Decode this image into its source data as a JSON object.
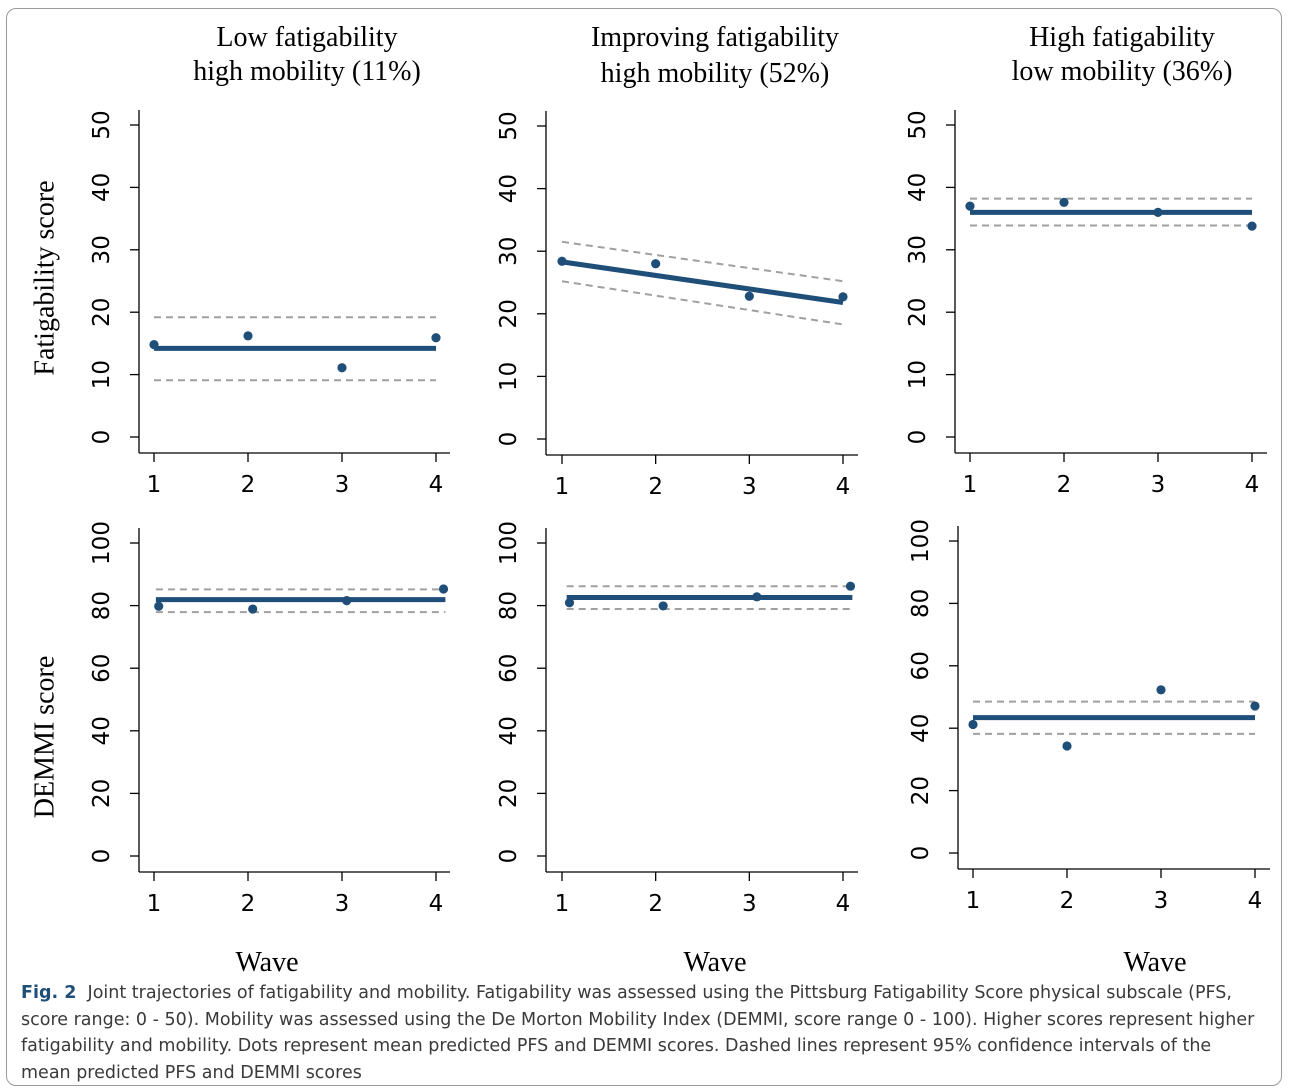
{
  "caption": {
    "label": "Fig. 2",
    "text": "Joint trajectories of fatigability and mobility. Fatigability was assessed using the Pittsburg Fatigability Score physical subscale (PFS, score range: 0 - 50). Mobility was assessed using the De Morton Mobility Index (DEMMI, score range 0 - 100). Higher scores represent higher fatigability and mobility. Dots represent mean predicted PFS and DEMMI scores. Dashed lines represent 95% confidence intervals of the mean predicted PFS and DEMMI scores"
  },
  "colors": {
    "line": "#1f4e79",
    "ci": "#a0a0a0",
    "axis": "#000000"
  },
  "chart_data": [
    {
      "type": "line",
      "column_title_line1": "Low fatigability",
      "column_title_line2": "high mobility (11%)",
      "ylabel": "Fatigability score",
      "xlabel": "",
      "x": [
        1,
        2,
        3,
        4
      ],
      "ylim": [
        0,
        50
      ],
      "yticks": [
        0,
        10,
        20,
        30,
        40,
        50
      ],
      "points": [
        14.8,
        16.2,
        11.1,
        15.9
      ],
      "fit": [
        [
          1,
          14.2
        ],
        [
          4,
          14.2
        ]
      ],
      "ci_upper": [
        [
          1,
          19.2
        ],
        [
          4,
          19.2
        ]
      ],
      "ci_lower": [
        [
          1,
          9.1
        ],
        [
          4,
          9.1
        ]
      ]
    },
    {
      "type": "line",
      "column_title_line1": "Improving fatigability",
      "column_title_line2": "high mobility (52%)",
      "ylabel": "",
      "xlabel": "",
      "x": [
        1,
        2,
        3,
        4
      ],
      "ylim": [
        0,
        50
      ],
      "yticks": [
        0,
        10,
        20,
        30,
        40,
        50
      ],
      "points": [
        28.4,
        28.0,
        22.8,
        22.7
      ],
      "fit": [
        [
          1,
          28.3
        ],
        [
          4,
          21.8
        ]
      ],
      "ci_upper": [
        [
          1,
          31.5
        ],
        [
          4,
          25.2
        ]
      ],
      "ci_lower": [
        [
          1,
          25.2
        ],
        [
          4,
          18.3
        ]
      ]
    },
    {
      "type": "line",
      "column_title_line1": "High fatigability",
      "column_title_line2": "low mobility (36%)",
      "ylabel": "",
      "xlabel": "",
      "x": [
        1,
        2,
        3,
        4
      ],
      "ylim": [
        0,
        50
      ],
      "yticks": [
        0,
        10,
        20,
        30,
        40,
        50
      ],
      "points": [
        37.0,
        37.6,
        36.0,
        33.8
      ],
      "fit": [
        [
          1,
          36.0
        ],
        [
          4,
          36.0
        ]
      ],
      "ci_upper": [
        [
          1,
          38.2
        ],
        [
          4,
          38.2
        ]
      ],
      "ci_lower": [
        [
          1,
          33.9
        ],
        [
          4,
          33.9
        ]
      ]
    },
    {
      "type": "line",
      "column_title_line1": "",
      "column_title_line2": "",
      "ylabel": "DEMMI score",
      "xlabel": "Wave",
      "x": [
        1,
        2,
        3,
        4
      ],
      "ylim": [
        0,
        100
      ],
      "yticks": [
        0,
        20,
        40,
        60,
        80,
        100
      ],
      "points_x": [
        1.05,
        2.05,
        3.05,
        4.08
      ],
      "points": [
        79.8,
        78.9,
        81.6,
        85.3
      ],
      "fit": [
        [
          1.02,
          81.9
        ],
        [
          4.1,
          81.9
        ]
      ],
      "ci_upper": [
        [
          1.02,
          85.2
        ],
        [
          4.1,
          85.2
        ]
      ],
      "ci_lower": [
        [
          1.02,
          77.9
        ],
        [
          4.1,
          77.9
        ]
      ]
    },
    {
      "type": "line",
      "column_title_line1": "",
      "column_title_line2": "",
      "ylabel": "",
      "xlabel": "Wave",
      "x": [
        1,
        2,
        3,
        4
      ],
      "ylim": [
        0,
        100
      ],
      "yticks": [
        0,
        20,
        40,
        60,
        80,
        100
      ],
      "points_x": [
        1.08,
        2.08,
        3.08,
        4.08
      ],
      "points": [
        80.9,
        79.9,
        82.8,
        86.2
      ],
      "fit": [
        [
          1.05,
          82.6
        ],
        [
          4.1,
          82.6
        ]
      ],
      "ci_upper": [
        [
          1.05,
          86.2
        ],
        [
          4.1,
          86.2
        ]
      ],
      "ci_lower": [
        [
          1.05,
          78.9
        ],
        [
          4.1,
          78.9
        ]
      ]
    },
    {
      "type": "line",
      "column_title_line1": "",
      "column_title_line2": "",
      "ylabel": "",
      "xlabel": "Wave",
      "x": [
        1,
        2,
        3,
        4
      ],
      "ylim": [
        0,
        100
      ],
      "yticks": [
        0,
        20,
        40,
        60,
        80,
        100
      ],
      "points": [
        41.2,
        34.3,
        52.3,
        47.1
      ],
      "fit": [
        [
          1,
          43.4
        ],
        [
          4,
          43.4
        ]
      ],
      "ci_upper": [
        [
          1,
          48.5
        ],
        [
          4,
          48.5
        ]
      ],
      "ci_lower": [
        [
          1,
          38.2
        ],
        [
          4,
          38.2
        ]
      ]
    }
  ]
}
